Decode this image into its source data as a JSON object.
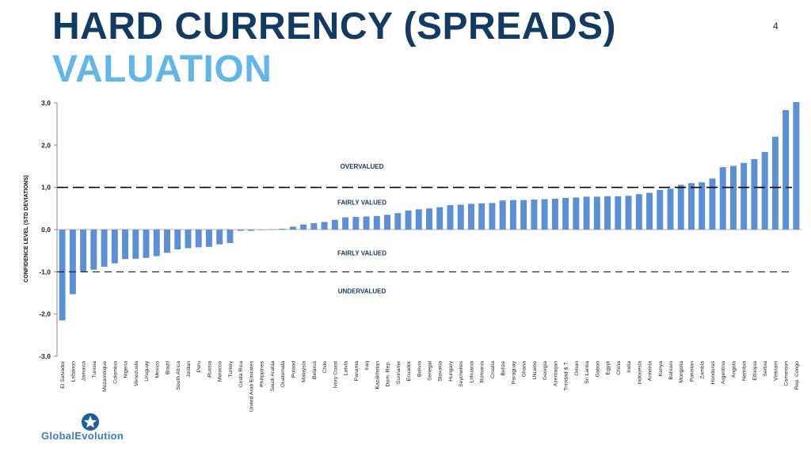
{
  "slide": {
    "title_line1": "HARD CURRENCY (SPREADS)",
    "title_line2": "VALUATION",
    "page_number": "4"
  },
  "logo": {
    "text": "GlobalEvolution"
  },
  "colors": {
    "bar": "#5b8fd6",
    "title_dark": "#123b64",
    "title_light": "#62b6e8"
  },
  "chart_data": {
    "type": "bar",
    "title": "",
    "xlabel": "",
    "ylabel": "CONFIDENCE LEVEL (STD DEVIATIONS)",
    "ylim": [
      -3,
      3
    ],
    "yticks": [
      "3,0",
      "2,0",
      "1,0",
      "0,0",
      "-1,0",
      "-2,0",
      "-3,0"
    ],
    "yticks_values": [
      3,
      2,
      1,
      0,
      -1,
      -2,
      -3
    ],
    "reference_lines": [
      1,
      -1
    ],
    "zone_labels": [
      {
        "text": "OVERVALUED",
        "y": 1.5
      },
      {
        "text": "FAIRLY VALUED",
        "y": 0.65
      },
      {
        "text": "FAIRLY VALUED",
        "y": -0.55
      },
      {
        "text": "UNDERVALUED",
        "y": -1.45
      }
    ],
    "categories": [
      "El Salvador",
      "Lebanon",
      "Jamaica",
      "Tunisia",
      "Mozambique",
      "Colombia",
      "Nigeria",
      "Venezuela",
      "Uruguay",
      "Mexico",
      "Brazil",
      "South Africa",
      "Jordan",
      "Peru",
      "Russia",
      "Morocco",
      "Turkey",
      "Costa Rica",
      "United Arab Emirates",
      "Philippines",
      "Saudi Arabia",
      "Guatemala",
      "Poland",
      "Malaysia",
      "Belarus",
      "Chile",
      "Ivory Coast",
      "Latvia",
      "Panama",
      "Iraq",
      "Kazakhstan",
      "Dom. Rep.",
      "Suriname",
      "Ecuador",
      "Bolivia",
      "Senegal",
      "Slovakia",
      "Hungary",
      "Seychelles",
      "Lithuania",
      "Romania",
      "Croatia",
      "Belize",
      "Paraguay",
      "Ghana",
      "Ukraine",
      "Georgia",
      "Azerbaijan",
      "Trinidad & T.",
      "Oman",
      "Sri Lanka",
      "Gabon",
      "Egypt",
      "China",
      "India",
      "Indonesia",
      "Armenia",
      "Kenya",
      "Bahrain",
      "Mongolia",
      "Pakistan",
      "Zambia",
      "Honduras",
      "Argentina",
      "Angola",
      "Namibia",
      "Ethiopia",
      "Serbia",
      "Vietnam",
      "Cameroon",
      "Rep. Congo"
    ],
    "values": [
      -2.15,
      -1.53,
      -1.0,
      -0.95,
      -0.88,
      -0.8,
      -0.7,
      -0.69,
      -0.67,
      -0.63,
      -0.55,
      -0.47,
      -0.44,
      -0.42,
      -0.41,
      -0.35,
      -0.32,
      -0.03,
      -0.03,
      -0.01,
      0.01,
      0.02,
      0.07,
      0.12,
      0.15,
      0.18,
      0.23,
      0.29,
      0.3,
      0.31,
      0.32,
      0.35,
      0.39,
      0.45,
      0.48,
      0.5,
      0.53,
      0.58,
      0.59,
      0.61,
      0.62,
      0.63,
      0.69,
      0.7,
      0.7,
      0.71,
      0.72,
      0.73,
      0.75,
      0.76,
      0.78,
      0.78,
      0.79,
      0.79,
      0.8,
      0.84,
      0.87,
      0.94,
      0.97,
      1.06,
      1.1,
      1.12,
      1.21,
      1.48,
      1.51,
      1.58,
      1.67,
      1.84,
      2.2,
      2.83,
      3.02
    ]
  }
}
